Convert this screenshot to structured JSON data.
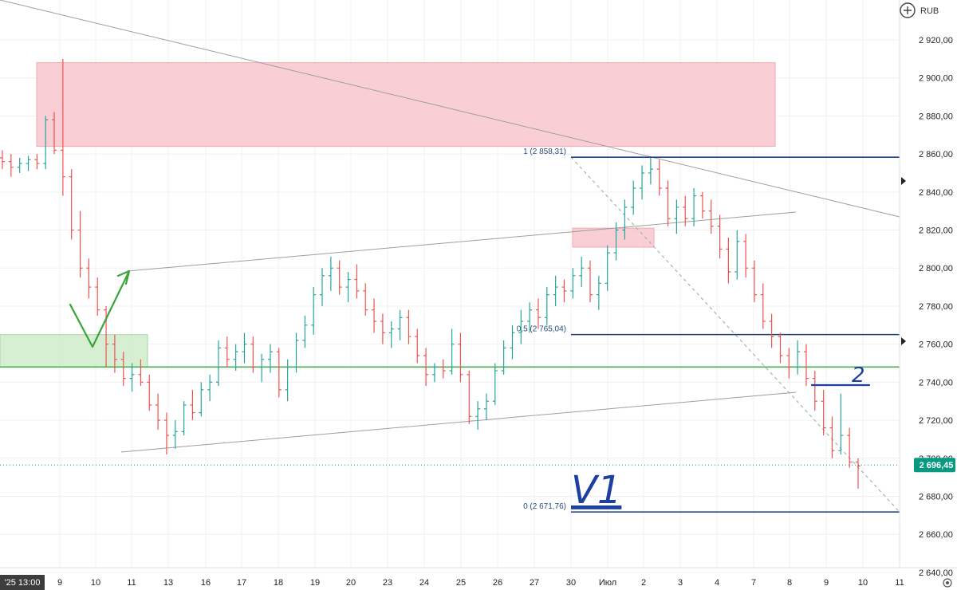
{
  "chart_data": {
    "type": "ohlc",
    "currency": "RUB",
    "current_price": 2696.45,
    "current_price_label": "2 696,45",
    "first_date_label": "'25  13:00",
    "y_ticks": [
      {
        "value": 2920,
        "label": "2 920,00"
      },
      {
        "value": 2900,
        "label": "2 900,00"
      },
      {
        "value": 2880,
        "label": "2 880,00"
      },
      {
        "value": 2860,
        "label": "2 860,00"
      },
      {
        "value": 2840,
        "label": "2 840,00"
      },
      {
        "value": 2820,
        "label": "2 820,00"
      },
      {
        "value": 2800,
        "label": "2 800,00"
      },
      {
        "value": 2780,
        "label": "2 780,00"
      },
      {
        "value": 2760,
        "label": "2 760,00"
      },
      {
        "value": 2740,
        "label": "2 740,00"
      },
      {
        "value": 2720,
        "label": "2 720,00"
      },
      {
        "value": 2700,
        "label": "2 700,00"
      },
      {
        "value": 2680,
        "label": "2 680,00"
      },
      {
        "value": 2660,
        "label": "2 660,00"
      },
      {
        "value": 2640,
        "label": "2 640,00"
      }
    ],
    "x_ticks": [
      "9",
      "10",
      "11",
      "13",
      "16",
      "17",
      "18",
      "19",
      "20",
      "23",
      "24",
      "25",
      "26",
      "27",
      "30",
      "Июл",
      "2",
      "3",
      "4",
      "7",
      "8",
      "9",
      "10",
      "11"
    ],
    "fib_levels": [
      {
        "label": "1 (2 858,31)",
        "value": 2858.31
      },
      {
        "label": "0,5 (2 765,04)",
        "value": 2765.04
      },
      {
        "label": "0 (2 671,76)",
        "value": 2671.76
      }
    ],
    "horizontal_level": 2748,
    "zones": [
      {
        "name": "resistance-zone",
        "color": "#f8c6cc",
        "y_top": 2908,
        "y_bottom": 2864
      },
      {
        "name": "support-zone",
        "color": "#cfeccb",
        "y_top": 2765,
        "y_bottom": 2748
      },
      {
        "name": "small-resistance-zone",
        "color": "#f8c6cc",
        "y_top": 2821,
        "y_bottom": 2811
      }
    ],
    "handwriting": [
      "2",
      "V1"
    ],
    "colors": {
      "up": "#26a69a",
      "down": "#ef5350",
      "fib": "#1f3f7a",
      "level": "#4caf50",
      "trend": "#9e9e9e",
      "tag": "#089981"
    },
    "bars": [
      [
        2858,
        2862,
        2852,
        2856
      ],
      [
        2856,
        2860,
        2848,
        2853
      ],
      [
        2853,
        2858,
        2850,
        2855
      ],
      [
        2855,
        2859,
        2851,
        2857
      ],
      [
        2857,
        2860,
        2852,
        2855
      ],
      [
        2855,
        2880,
        2852,
        2878
      ],
      [
        2878,
        2882,
        2860,
        2862
      ],
      [
        2862,
        2910,
        2838,
        2848
      ],
      [
        2848,
        2852,
        2815,
        2820
      ],
      [
        2820,
        2830,
        2795,
        2800
      ],
      [
        2800,
        2805,
        2784,
        2790
      ],
      [
        2790,
        2795,
        2775,
        2778
      ],
      [
        2778,
        2780,
        2748,
        2760
      ],
      [
        2760,
        2765,
        2745,
        2752
      ],
      [
        2752,
        2756,
        2738,
        2742
      ],
      [
        2742,
        2750,
        2735,
        2744
      ],
      [
        2744,
        2752,
        2738,
        2740
      ],
      [
        2740,
        2744,
        2725,
        2728
      ],
      [
        2728,
        2734,
        2715,
        2720
      ],
      [
        2720,
        2724,
        2702,
        2712
      ],
      [
        2712,
        2720,
        2705,
        2714
      ],
      [
        2714,
        2730,
        2712,
        2728
      ],
      [
        2728,
        2736,
        2720,
        2724
      ],
      [
        2724,
        2740,
        2722,
        2736
      ],
      [
        2736,
        2744,
        2730,
        2740
      ],
      [
        2740,
        2762,
        2738,
        2758
      ],
      [
        2758,
        2764,
        2748,
        2752
      ],
      [
        2752,
        2760,
        2746,
        2756
      ],
      [
        2756,
        2766,
        2750,
        2760
      ],
      [
        2760,
        2764,
        2745,
        2748
      ],
      [
        2748,
        2755,
        2740,
        2752
      ],
      [
        2752,
        2760,
        2745,
        2756
      ],
      [
        2756,
        2758,
        2732,
        2736
      ],
      [
        2736,
        2752,
        2730,
        2748
      ],
      [
        2748,
        2766,
        2745,
        2762
      ],
      [
        2762,
        2775,
        2758,
        2770
      ],
      [
        2770,
        2790,
        2765,
        2786
      ],
      [
        2786,
        2800,
        2780,
        2796
      ],
      [
        2796,
        2806,
        2788,
        2800
      ],
      [
        2800,
        2804,
        2786,
        2790
      ],
      [
        2790,
        2798,
        2782,
        2794
      ],
      [
        2794,
        2802,
        2784,
        2788
      ],
      [
        2788,
        2792,
        2775,
        2778
      ],
      [
        2778,
        2784,
        2766,
        2772
      ],
      [
        2772,
        2776,
        2760,
        2766
      ],
      [
        2766,
        2772,
        2758,
        2768
      ],
      [
        2768,
        2778,
        2762,
        2774
      ],
      [
        2774,
        2778,
        2760,
        2764
      ],
      [
        2764,
        2768,
        2750,
        2754
      ],
      [
        2754,
        2758,
        2738,
        2744
      ],
      [
        2744,
        2750,
        2740,
        2748
      ],
      [
        2748,
        2752,
        2742,
        2746
      ],
      [
        2746,
        2768,
        2744,
        2760
      ],
      [
        2760,
        2766,
        2740,
        2744
      ],
      [
        2744,
        2746,
        2718,
        2722
      ],
      [
        2722,
        2730,
        2715,
        2726
      ],
      [
        2726,
        2734,
        2720,
        2730
      ],
      [
        2730,
        2750,
        2728,
        2746
      ],
      [
        2746,
        2762,
        2744,
        2758
      ],
      [
        2758,
        2770,
        2752,
        2766
      ],
      [
        2766,
        2778,
        2760,
        2772
      ],
      [
        2772,
        2782,
        2766,
        2778
      ],
      [
        2778,
        2784,
        2768,
        2774
      ],
      [
        2774,
        2790,
        2770,
        2786
      ],
      [
        2786,
        2796,
        2780,
        2790
      ],
      [
        2790,
        2794,
        2782,
        2788
      ],
      [
        2788,
        2800,
        2784,
        2796
      ],
      [
        2796,
        2806,
        2790,
        2800
      ],
      [
        2800,
        2804,
        2782,
        2786
      ],
      [
        2786,
        2796,
        2778,
        2792
      ],
      [
        2792,
        2812,
        2788,
        2808
      ],
      [
        2808,
        2824,
        2804,
        2820
      ],
      [
        2820,
        2836,
        2815,
        2832
      ],
      [
        2832,
        2846,
        2828,
        2842
      ],
      [
        2842,
        2854,
        2836,
        2850
      ],
      [
        2850,
        2858,
        2844,
        2852
      ],
      [
        2852,
        2857,
        2838,
        2842
      ],
      [
        2842,
        2846,
        2822,
        2826
      ],
      [
        2826,
        2836,
        2818,
        2832
      ],
      [
        2832,
        2838,
        2822,
        2826
      ],
      [
        2826,
        2842,
        2822,
        2838
      ],
      [
        2838,
        2840,
        2826,
        2830
      ],
      [
        2830,
        2836,
        2818,
        2822
      ],
      [
        2822,
        2828,
        2805,
        2810
      ],
      [
        2810,
        2816,
        2792,
        2798
      ],
      [
        2798,
        2820,
        2794,
        2814
      ],
      [
        2814,
        2818,
        2795,
        2800
      ],
      [
        2800,
        2804,
        2782,
        2786
      ],
      [
        2786,
        2792,
        2768,
        2772
      ],
      [
        2772,
        2776,
        2758,
        2764
      ],
      [
        2764,
        2766,
        2750,
        2754
      ],
      [
        2754,
        2758,
        2742,
        2748
      ],
      [
        2748,
        2762,
        2744,
        2756
      ],
      [
        2756,
        2760,
        2738,
        2742
      ],
      [
        2742,
        2746,
        2725,
        2730
      ],
      [
        2730,
        2736,
        2712,
        2716
      ],
      [
        2716,
        2722,
        2700,
        2704
      ],
      [
        2704,
        2734,
        2702,
        2712
      ],
      [
        2712,
        2716,
        2695,
        2698
      ],
      [
        2698,
        2700,
        2684,
        2696
      ]
    ]
  }
}
